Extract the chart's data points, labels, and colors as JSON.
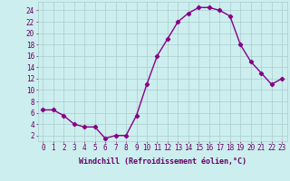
{
  "x": [
    0,
    1,
    2,
    3,
    4,
    5,
    6,
    7,
    8,
    9,
    10,
    11,
    12,
    13,
    14,
    15,
    16,
    17,
    18,
    19,
    20,
    21,
    22,
    23
  ],
  "y": [
    6.5,
    6.5,
    5.5,
    4.0,
    3.5,
    3.5,
    1.5,
    2.0,
    2.0,
    5.5,
    11.0,
    16.0,
    19.0,
    22.0,
    23.5,
    24.5,
    24.5,
    24.0,
    23.0,
    18.0,
    15.0,
    13.0,
    11.0,
    12.0
  ],
  "line_color": "#880088",
  "marker": "D",
  "marker_size": 2.2,
  "line_width": 1.0,
  "bg_color": "#cceeee",
  "plot_bg_color": "#cceeee",
  "grid_color": "#aacccc",
  "tick_color": "#660066",
  "xlabel": "Windchill (Refroidissement éolien,°C)",
  "xlabel_fontsize": 6,
  "yticks": [
    2,
    4,
    6,
    8,
    10,
    12,
    14,
    16,
    18,
    20,
    22,
    24
  ],
  "xticks": [
    0,
    1,
    2,
    3,
    4,
    5,
    6,
    7,
    8,
    9,
    10,
    11,
    12,
    13,
    14,
    15,
    16,
    17,
    18,
    19,
    20,
    21,
    22,
    23
  ],
  "ylim": [
    1,
    25.5
  ],
  "xlim": [
    -0.5,
    23.5
  ],
  "tick_fontsize": 5.5
}
